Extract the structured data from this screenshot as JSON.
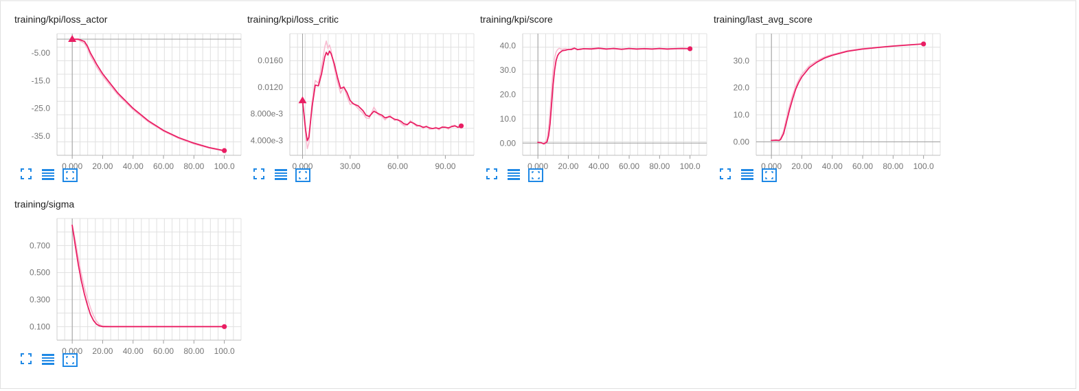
{
  "page": {
    "accent": "#e91e63",
    "toolbar_color": "#1e88e5"
  },
  "toolbar": {
    "icons": [
      "fullscreen-icon",
      "toggle-y-log-icon",
      "fit-domain-icon"
    ]
  },
  "chart_data": [
    {
      "id": "loss_actor",
      "type": "line",
      "title": "training/kpi/loss_actor",
      "xlabel": "",
      "ylabel": "",
      "xlim": [
        -10,
        111
      ],
      "ylim": [
        -42,
        2
      ],
      "xticks": [
        0,
        20,
        40,
        60,
        80,
        100
      ],
      "xtick_labels": [
        "0.000",
        "20.00",
        "40.00",
        "60.00",
        "80.00",
        "100.0"
      ],
      "yticks": [
        -5,
        -15,
        -25,
        -35
      ],
      "ytick_labels": [
        "-5.00",
        "-15.0",
        "-25.0",
        "-35.0"
      ],
      "grid": true,
      "start_marker": "triangle",
      "series": [
        {
          "color": "#e91e63",
          "x": [
            0,
            4,
            8,
            10,
            12,
            14,
            16,
            20,
            25,
            30,
            40,
            50,
            60,
            70,
            80,
            90,
            100
          ],
          "y": [
            0,
            0,
            -0.8,
            -2.5,
            -5,
            -7,
            -9,
            -12.5,
            -16,
            -19.5,
            -25,
            -29.5,
            -33,
            -35.6,
            -37.6,
            -39.2,
            -40.3
          ]
        },
        {
          "color": "#f8bbd0",
          "x": [
            0,
            4,
            8,
            10,
            12,
            14,
            16,
            20,
            25,
            30,
            40,
            50,
            60,
            70,
            80,
            90,
            100
          ],
          "y": [
            0,
            -0.3,
            -1.5,
            -3.4,
            -6,
            -8,
            -10,
            -13.3,
            -16.8,
            -20.1,
            -25.5,
            -29.9,
            -33.3,
            -35.9,
            -37.9,
            -39.4,
            -40.5
          ]
        }
      ]
    },
    {
      "id": "loss_critic",
      "type": "line",
      "title": "training/kpi/loss_critic",
      "xlabel": "",
      "ylabel": "",
      "xlim": [
        -8,
        108
      ],
      "ylim": [
        0.0018,
        0.02
      ],
      "xticks": [
        0,
        30,
        60,
        90
      ],
      "xtick_labels": [
        "0.000",
        "30.00",
        "60.00",
        "90.00"
      ],
      "yticks": [
        0.004,
        0.008,
        0.012,
        0.016
      ],
      "ytick_labels": [
        "4.000e-3",
        "8.000e-3",
        "0.0120",
        "0.0160"
      ],
      "grid": true,
      "start_marker": "triangle",
      "series": [
        {
          "color": "#e91e63",
          "x": [
            0,
            2,
            3,
            4,
            6,
            8,
            10,
            12,
            14,
            15,
            16,
            17,
            18,
            20,
            22,
            24,
            26,
            28,
            30,
            32,
            35,
            38,
            40,
            42,
            45,
            48,
            50,
            52,
            55,
            58,
            60,
            62,
            64,
            66,
            68,
            70,
            72,
            74,
            76,
            78,
            80,
            82,
            84,
            86,
            88,
            90,
            92,
            94,
            96,
            98,
            100
          ],
          "y": [
            0.01,
            0.0055,
            0.004,
            0.0045,
            0.009,
            0.0123,
            0.0122,
            0.014,
            0.0165,
            0.0172,
            0.0168,
            0.0174,
            0.017,
            0.0155,
            0.0135,
            0.0118,
            0.012,
            0.0112,
            0.01,
            0.0095,
            0.0092,
            0.0085,
            0.0078,
            0.0076,
            0.0084,
            0.008,
            0.0078,
            0.0074,
            0.0076,
            0.0072,
            0.0071,
            0.0069,
            0.0065,
            0.0064,
            0.0068,
            0.0066,
            0.0063,
            0.0062,
            0.006,
            0.0061,
            0.0059,
            0.0058,
            0.0059,
            0.0058,
            0.006,
            0.006,
            0.0059,
            0.0061,
            0.0062,
            0.006,
            0.0062
          ]
        },
        {
          "color": "#f8bbd0",
          "x": [
            0,
            2,
            3,
            4,
            6,
            8,
            10,
            12,
            14,
            15,
            16,
            17,
            18,
            20,
            22,
            24,
            26,
            28,
            30,
            32,
            35,
            38,
            40,
            42,
            45,
            48,
            50,
            52,
            55,
            58,
            60,
            62,
            64,
            66,
            68,
            70,
            72,
            74,
            76,
            78,
            80,
            82,
            84,
            86,
            88,
            90,
            92,
            94,
            96,
            98,
            100
          ],
          "y": [
            0.01,
            0.005,
            0.0028,
            0.0036,
            0.0098,
            0.013,
            0.0126,
            0.015,
            0.018,
            0.0189,
            0.0178,
            0.0183,
            0.0175,
            0.0149,
            0.0128,
            0.0111,
            0.0121,
            0.0106,
            0.0094,
            0.0096,
            0.0088,
            0.0081,
            0.0074,
            0.0073,
            0.009,
            0.0078,
            0.0076,
            0.0071,
            0.0078,
            0.007,
            0.0072,
            0.0066,
            0.0062,
            0.0063,
            0.007,
            0.0065,
            0.0061,
            0.0063,
            0.0058,
            0.0062,
            0.0057,
            0.0058,
            0.006,
            0.0056,
            0.0061,
            0.006,
            0.0057,
            0.0062,
            0.0063,
            0.0059,
            0.0063
          ]
        }
      ]
    },
    {
      "id": "score",
      "type": "line",
      "title": "training/kpi/score",
      "xlabel": "",
      "ylabel": "",
      "xlim": [
        -10,
        111
      ],
      "ylim": [
        -5,
        45
      ],
      "xticks": [
        0,
        20,
        40,
        60,
        80,
        100
      ],
      "xtick_labels": [
        "0.000",
        "20.00",
        "40.00",
        "60.00",
        "80.00",
        "100.0"
      ],
      "yticks": [
        0,
        10,
        20,
        30,
        40
      ],
      "ytick_labels": [
        "0.00",
        "10.0",
        "20.0",
        "30.0",
        "40.0"
      ],
      "grid": true,
      "start_marker": "none",
      "series": [
        {
          "color": "#e91e63",
          "x": [
            0,
            2,
            4,
            6,
            7,
            8,
            9,
            10,
            11,
            12,
            13,
            14,
            16,
            18,
            20,
            22,
            24,
            26,
            28,
            30,
            35,
            40,
            45,
            50,
            55,
            60,
            65,
            70,
            75,
            80,
            85,
            90,
            95,
            100
          ],
          "y": [
            0.3,
            0.2,
            -0.3,
            0.5,
            3,
            8,
            16,
            24,
            30,
            34,
            36,
            37,
            38,
            38.2,
            38.5,
            38.5,
            39,
            38.5,
            38.6,
            38.8,
            38.7,
            39,
            38.7,
            38.9,
            38.6,
            38.9,
            38.7,
            38.8,
            38.7,
            38.9,
            38.7,
            38.8,
            38.9,
            38.8
          ]
        },
        {
          "color": "#f8bbd0",
          "x": [
            0,
            2,
            4,
            6,
            7,
            8,
            9,
            10,
            11,
            12,
            13,
            14,
            16,
            18,
            20,
            22,
            24,
            26,
            28,
            30,
            35,
            40,
            45,
            50,
            55,
            60,
            65,
            70,
            75,
            80,
            85,
            90,
            95,
            100
          ],
          "y": [
            0.3,
            0.1,
            -0.2,
            1.5,
            6,
            13,
            22,
            30,
            35,
            37.5,
            38.5,
            39,
            38.6,
            38.9,
            38.4,
            38.8,
            39.2,
            38.3,
            38.8,
            38.7,
            38.9,
            39.1,
            38.6,
            39,
            38.5,
            39,
            38.6,
            38.9,
            38.6,
            39,
            38.6,
            38.9,
            39,
            38.8
          ]
        }
      ]
    },
    {
      "id": "last_avg_score",
      "type": "line",
      "title": "training/last_avg_score",
      "xlabel": "",
      "ylabel": "",
      "xlim": [
        -10,
        111
      ],
      "ylim": [
        -5,
        40
      ],
      "xticks": [
        0,
        20,
        40,
        60,
        80,
        100
      ],
      "xtick_labels": [
        "0.000",
        "20.00",
        "40.00",
        "60.00",
        "80.00",
        "100.0"
      ],
      "yticks": [
        0,
        10,
        20,
        30
      ],
      "ytick_labels": [
        "0.00",
        "10.0",
        "20.0",
        "30.0"
      ],
      "grid": true,
      "start_marker": "none",
      "series": [
        {
          "color": "#e91e63",
          "x": [
            0,
            3,
            5,
            6,
            8,
            10,
            12,
            14,
            16,
            18,
            20,
            25,
            30,
            35,
            40,
            50,
            60,
            70,
            80,
            90,
            100
          ],
          "y": [
            0.5,
            0.6,
            0.5,
            0.8,
            3,
            7.5,
            12,
            16,
            19.5,
            22,
            24,
            27.5,
            29.5,
            31,
            32,
            33.5,
            34.3,
            34.9,
            35.4,
            35.8,
            36.2
          ]
        },
        {
          "color": "#f8bbd0",
          "x": [
            0,
            3,
            5,
            6,
            8,
            10,
            12,
            14,
            16,
            18,
            20,
            25,
            30,
            35,
            40,
            50,
            60,
            70,
            80,
            90,
            100
          ],
          "y": [
            0.5,
            0.7,
            0.6,
            1.2,
            4,
            9,
            13.5,
            17.5,
            20.5,
            23,
            25,
            28.2,
            30,
            31.4,
            32.3,
            33.7,
            34.5,
            35,
            35.5,
            35.9,
            36.2
          ]
        }
      ]
    },
    {
      "id": "sigma",
      "type": "line",
      "title": "training/sigma",
      "xlabel": "",
      "ylabel": "",
      "xlim": [
        -10,
        111
      ],
      "ylim": [
        0.0,
        0.9
      ],
      "xticks": [
        0,
        20,
        40,
        60,
        80,
        100
      ],
      "xtick_labels": [
        "0.000",
        "20.00",
        "40.00",
        "60.00",
        "80.00",
        "100.0"
      ],
      "yticks": [
        0.1,
        0.3,
        0.5,
        0.7
      ],
      "ytick_labels": [
        "0.100",
        "0.300",
        "0.500",
        "0.700"
      ],
      "grid": true,
      "start_marker": "none",
      "series": [
        {
          "color": "#e91e63",
          "x": [
            0,
            2,
            4,
            6,
            8,
            10,
            12,
            14,
            16,
            18,
            20,
            25,
            30,
            40,
            50,
            60,
            70,
            80,
            90,
            100
          ],
          "y": [
            0.85,
            0.7,
            0.56,
            0.44,
            0.34,
            0.26,
            0.19,
            0.145,
            0.118,
            0.105,
            0.1,
            0.1,
            0.1,
            0.1,
            0.1,
            0.1,
            0.1,
            0.1,
            0.1,
            0.1
          ]
        },
        {
          "color": "#f8bbd0",
          "x": [
            0,
            2,
            4,
            6,
            8,
            10,
            12,
            14,
            16,
            18,
            20,
            25,
            30,
            40,
            50,
            60,
            70,
            80,
            90,
            100
          ],
          "y": [
            0.85,
            0.74,
            0.61,
            0.49,
            0.39,
            0.31,
            0.24,
            0.18,
            0.14,
            0.115,
            0.104,
            0.1,
            0.1,
            0.1,
            0.1,
            0.1,
            0.1,
            0.1,
            0.1,
            0.1
          ]
        }
      ]
    }
  ]
}
